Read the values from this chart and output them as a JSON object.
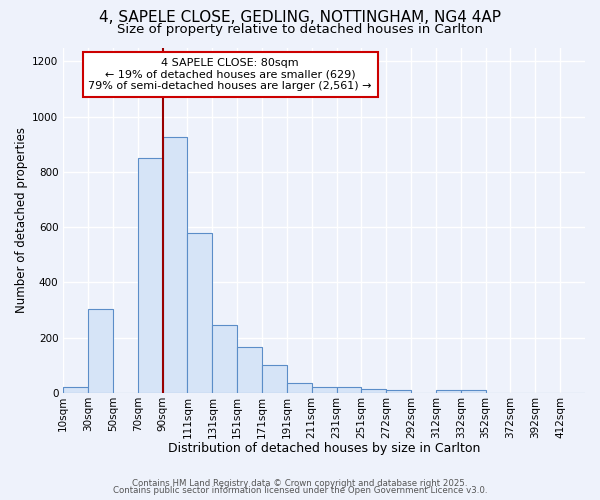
{
  "title_line1": "4, SAPELE CLOSE, GEDLING, NOTTINGHAM, NG4 4AP",
  "title_line2": "Size of property relative to detached houses in Carlton",
  "xlabel": "Distribution of detached houses by size in Carlton",
  "ylabel": "Number of detached properties",
  "bar_labels": [
    "10sqm",
    "30sqm",
    "50sqm",
    "70sqm",
    "90sqm",
    "111sqm",
    "131sqm",
    "151sqm",
    "171sqm",
    "191sqm",
    "211sqm",
    "231sqm",
    "251sqm",
    "272sqm",
    "292sqm",
    "312sqm",
    "332sqm",
    "352sqm",
    "372sqm",
    "392sqm",
    "412sqm"
  ],
  "bar_values": [
    20,
    305,
    0,
    850,
    925,
    580,
    245,
    165,
    100,
    35,
    20,
    20,
    15,
    10,
    0,
    10,
    10,
    0,
    0,
    0,
    0
  ],
  "bar_color": "#d6e4f7",
  "bar_edge_color": "#5b8dc8",
  "bar_width": 1.0,
  "vline_x": 4.0,
  "vline_color": "#990000",
  "annotation_title": "4 SAPELE CLOSE: 80sqm",
  "annotation_line2": "← 19% of detached houses are smaller (629)",
  "annotation_line3": "79% of semi-detached houses are larger (2,561) →",
  "annotation_box_color": "#ffffff",
  "annotation_box_edge": "#cc0000",
  "ylim": [
    0,
    1250
  ],
  "yticks": [
    0,
    200,
    400,
    600,
    800,
    1000,
    1200
  ],
  "background_color": "#eef2fb",
  "plot_bg_color": "#eef2fb",
  "footer_line1": "Contains HM Land Registry data © Crown copyright and database right 2025.",
  "footer_line2": "Contains public sector information licensed under the Open Government Licence v3.0.",
  "grid_color": "#ffffff",
  "title_fontsize": 11,
  "subtitle_fontsize": 9.5,
  "xlabel_fontsize": 9,
  "ylabel_fontsize": 8.5,
  "tick_fontsize": 7.5,
  "annotation_fontsize": 8
}
